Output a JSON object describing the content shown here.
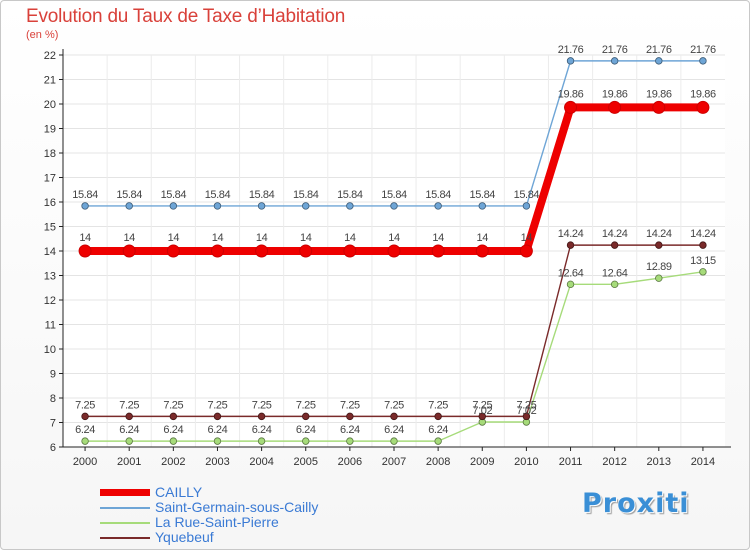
{
  "chart_data": {
    "type": "line",
    "title": "Evolution du Taux de Taxe d’Habitation",
    "ylabel": "(en %)",
    "xlabel": "",
    "ylim": [
      6,
      22
    ],
    "y_ticks": [
      "6",
      "7",
      "8",
      "9",
      "10",
      "11",
      "12",
      "13",
      "14",
      "15",
      "16",
      "17",
      "18",
      "19",
      "20",
      "21",
      "22"
    ],
    "categories": [
      "2000",
      "2001",
      "2002",
      "2003",
      "2004",
      "2005",
      "2006",
      "2007",
      "2008",
      "2009",
      "2010",
      "2011",
      "2012",
      "2013",
      "2014"
    ],
    "grid": true,
    "legend": "bottom-left",
    "series": [
      {
        "name": "CAILLY",
        "color": "#ee0000",
        "values": [
          14,
          14,
          14,
          14,
          14,
          14,
          14,
          14,
          14,
          14,
          14,
          19.86,
          19.86,
          19.86,
          19.86
        ],
        "labels": [
          "14",
          "14",
          "14",
          "14",
          "14",
          "14",
          "14",
          "14",
          "14",
          "14",
          "14",
          "19.86",
          "19.86",
          "19.86",
          "19.86"
        ]
      },
      {
        "name": "Saint-Germain-sous-Cailly",
        "color": "#6ea5d6",
        "values": [
          15.84,
          15.84,
          15.84,
          15.84,
          15.84,
          15.84,
          15.84,
          15.84,
          15.84,
          15.84,
          15.84,
          21.76,
          21.76,
          21.76,
          21.76
        ],
        "labels": [
          "15.84",
          "15.84",
          "15.84",
          "15.84",
          "15.84",
          "15.84",
          "15.84",
          "15.84",
          "15.84",
          "15.84",
          "15.84",
          "21.76",
          "21.76",
          "21.76",
          "21.76"
        ]
      },
      {
        "name": "La Rue-Saint-Pierre",
        "color": "#a6db7a",
        "values": [
          6.24,
          6.24,
          6.24,
          6.24,
          6.24,
          6.24,
          6.24,
          6.24,
          6.24,
          7.02,
          7.02,
          12.64,
          12.64,
          12.89,
          13.15
        ],
        "labels": [
          "6.24",
          "6.24",
          "6.24",
          "6.24",
          "6.24",
          "6.24",
          "6.24",
          "6.24",
          "6.24",
          "7.02",
          "7.02",
          "12.64",
          "12.64",
          "12.89",
          "13.15"
        ]
      },
      {
        "name": "Yquebeuf",
        "color": "#7a2a2a",
        "values": [
          7.25,
          7.25,
          7.25,
          7.25,
          7.25,
          7.25,
          7.25,
          7.25,
          7.25,
          7.25,
          7.25,
          14.24,
          14.24,
          14.24,
          14.24
        ],
        "labels": [
          "7.25",
          "7.25",
          "7.25",
          "7.25",
          "7.25",
          "7.25",
          "7.25",
          "7.25",
          "7.25",
          "7.25",
          "7.25",
          "14.24",
          "14.24",
          "14.24",
          "14.24"
        ]
      }
    ]
  },
  "logo": {
    "text": "Proxiti"
  }
}
